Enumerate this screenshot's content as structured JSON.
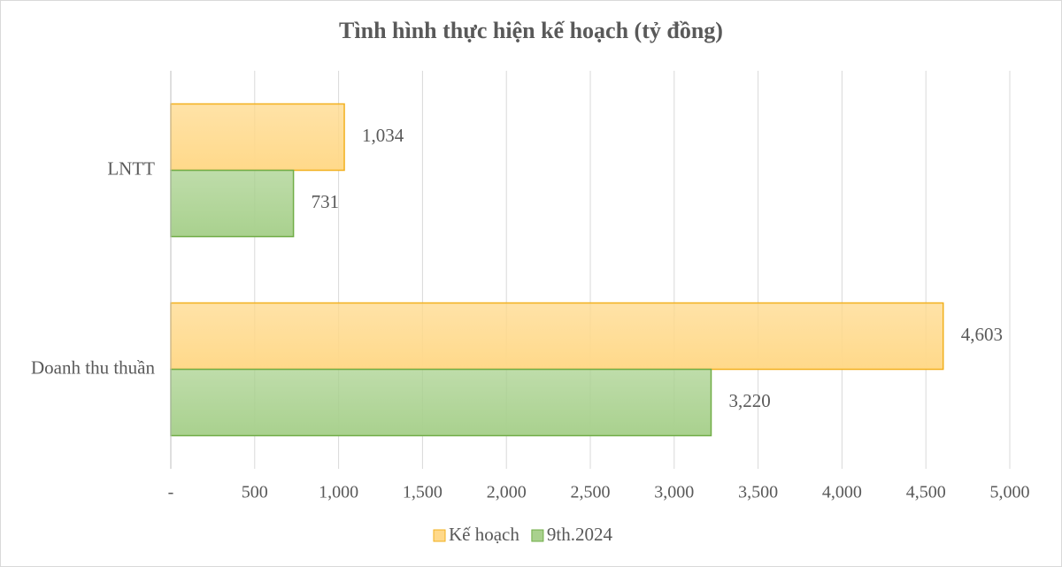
{
  "chart_data": {
    "type": "hbar",
    "title": "Tình hình thực hiện kế hoạch (tỷ đồng)",
    "categories": [
      "LNTT",
      "Doanh thu thuần"
    ],
    "series": [
      {
        "name": "Kế hoạch",
        "color": "#ffd98a",
        "border": "#f2b01e",
        "values": [
          1034,
          4603
        ],
        "value_labels": [
          "1,034",
          "4,603"
        ]
      },
      {
        "name": "9th.2024",
        "color": "#a9d18e",
        "border": "#70ad47",
        "values": [
          731,
          3220
        ],
        "value_labels": [
          "731",
          "3,220"
        ]
      }
    ],
    "xlim": [
      0,
      5000
    ],
    "xticks": [
      {
        "value": 0,
        "label": "-"
      },
      500,
      {
        "value": 1000,
        "label": "1,000"
      },
      {
        "value": 1500,
        "label": "1,500"
      },
      {
        "value": 2000,
        "label": "2,000"
      },
      {
        "value": 2500,
        "label": "2,500"
      },
      {
        "value": 3000,
        "label": "3,000"
      },
      {
        "value": 3500,
        "label": "3,500"
      },
      {
        "value": 4000,
        "label": "4,000"
      },
      {
        "value": 4500,
        "label": "4,500"
      },
      {
        "value": 5000,
        "label": "5,000"
      }
    ],
    "grid": true,
    "legend": "bottom"
  }
}
